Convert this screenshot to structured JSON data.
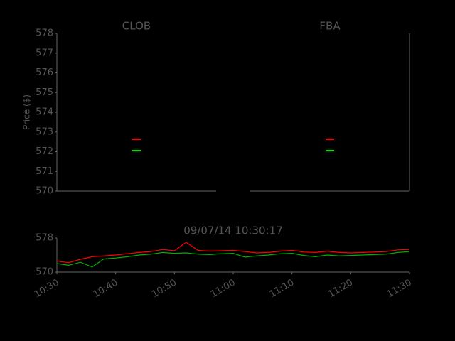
{
  "chart_data": [
    {
      "type": "marker",
      "ylabel": "Price ($)",
      "ylim": [
        570,
        578
      ],
      "yticks": [
        570,
        571,
        572,
        573,
        574,
        575,
        576,
        577,
        578
      ],
      "panels": [
        {
          "title": "CLOB",
          "series": [
            {
              "color": "#ff0000",
              "value": 572.63
            },
            {
              "color": "#00ff00",
              "value": 572.05
            }
          ]
        },
        {
          "title": "FBA",
          "series": [
            {
              "color": "#ff0000",
              "value": 572.63
            },
            {
              "color": "#00ff00",
              "value": 572.05
            }
          ]
        }
      ]
    },
    {
      "type": "line",
      "title": "09/07/14 10:30:17",
      "x": [
        "10:30",
        "10:32",
        "10:34",
        "10:36",
        "10:38",
        "10:40",
        "10:42",
        "10:44",
        "10:46",
        "10:48",
        "10:50",
        "10:52",
        "10:54",
        "10:56",
        "10:58",
        "11:00",
        "11:02",
        "11:04",
        "11:06",
        "11:08",
        "11:10",
        "11:12",
        "11:14",
        "11:16",
        "11:18",
        "11:20",
        "11:22",
        "11:24",
        "11:26",
        "11:28",
        "11:30"
      ],
      "xlim": [
        "10:30",
        "11:30"
      ],
      "xticks": [
        "10:30",
        "10:40",
        "10:50",
        "11:00",
        "11:10",
        "11:20",
        "11:30"
      ],
      "ylim": [
        570,
        578
      ],
      "yticks": [
        570,
        578
      ],
      "series": [
        {
          "color": "#ff0000",
          "values": [
            572.6,
            572.2,
            573.0,
            573.6,
            573.8,
            574.0,
            574.3,
            574.6,
            574.8,
            575.3,
            575.0,
            577.0,
            575.1,
            574.9,
            575.0,
            575.1,
            574.8,
            574.5,
            574.6,
            574.9,
            575.1,
            574.7,
            574.6,
            574.9,
            574.6,
            574.5,
            574.6,
            574.7,
            574.8,
            575.2,
            575.3
          ]
        },
        {
          "color": "#00b000",
          "values": [
            572.0,
            571.6,
            572.3,
            571.2,
            573.1,
            573.3,
            573.6,
            574.0,
            574.2,
            574.6,
            574.4,
            574.5,
            574.2,
            574.1,
            574.3,
            574.4,
            573.5,
            573.8,
            574.0,
            574.3,
            574.4,
            573.9,
            573.6,
            574.0,
            573.8,
            573.9,
            574.0,
            574.1,
            574.2,
            574.6,
            574.8
          ]
        }
      ]
    }
  ]
}
